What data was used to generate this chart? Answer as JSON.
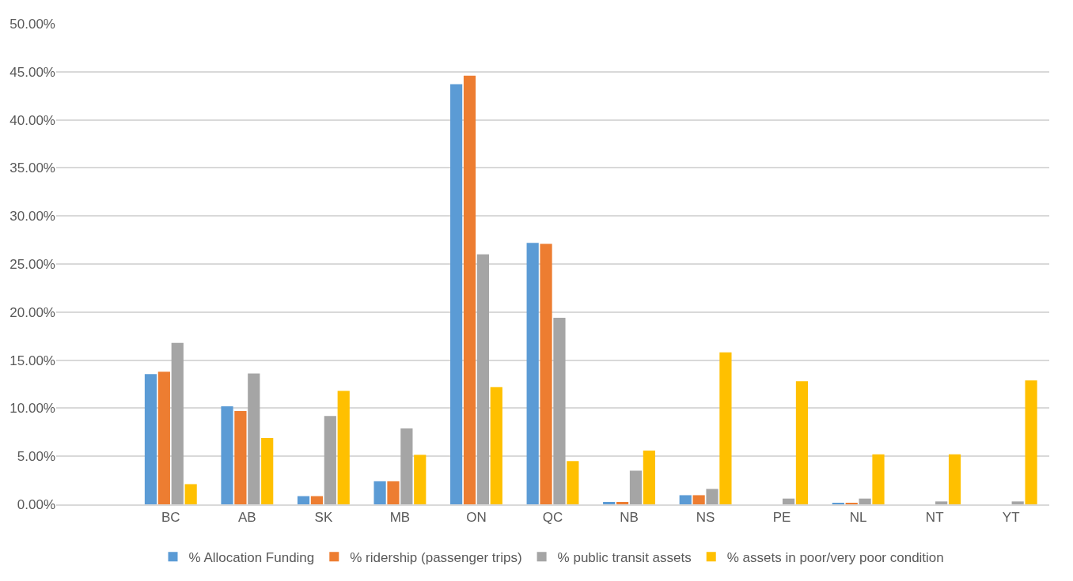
{
  "chart_data": {
    "type": "bar",
    "categories": [
      null,
      "BC",
      "AB",
      "SK",
      "MB",
      "ON",
      "QC",
      "NB",
      "NS",
      "PE",
      "NL",
      "NT",
      "YT"
    ],
    "series": [
      {
        "name": "% Allocation Funding",
        "color": "#5b9bd5",
        "values": [
          null,
          13.55,
          10.2,
          0.85,
          2.4,
          43.7,
          27.2,
          0.25,
          0.95,
          0,
          0.15,
          0,
          0
        ]
      },
      {
        "name": "% ridership (passenger trips)",
        "color": "#ed7d31",
        "values": [
          null,
          13.8,
          9.7,
          0.85,
          2.4,
          44.6,
          27.1,
          0.25,
          0.95,
          0,
          0.15,
          0,
          0
        ]
      },
      {
        "name": "% public transit assets",
        "color": "#a5a5a5",
        "values": [
          null,
          16.8,
          13.6,
          9.2,
          7.9,
          26.0,
          19.4,
          3.5,
          1.6,
          0.6,
          0.6,
          0.3,
          0.3
        ]
      },
      {
        "name": "% assets in poor/very poor condition",
        "color": "#ffc000",
        "values": [
          null,
          2.1,
          6.9,
          11.8,
          5.15,
          12.2,
          4.5,
          5.6,
          15.8,
          12.8,
          5.2,
          5.2,
          12.9
        ]
      }
    ],
    "ylim": [
      0,
      50
    ],
    "yticks": [
      {
        "value": 0,
        "label": "0.00%"
      },
      {
        "value": 5,
        "label": "5.00%"
      },
      {
        "value": 10,
        "label": "10.00%"
      },
      {
        "value": 15,
        "label": "15.00%"
      },
      {
        "value": 20,
        "label": "20.00%"
      },
      {
        "value": 25,
        "label": "25.00%"
      },
      {
        "value": 30,
        "label": "30.00%"
      },
      {
        "value": 35,
        "label": "35.00%"
      },
      {
        "value": 40,
        "label": "40.00%"
      },
      {
        "value": 45,
        "label": "45.00%"
      },
      {
        "value": 50,
        "label": "50.00%"
      }
    ],
    "grid": "y",
    "legend": "bottom"
  }
}
